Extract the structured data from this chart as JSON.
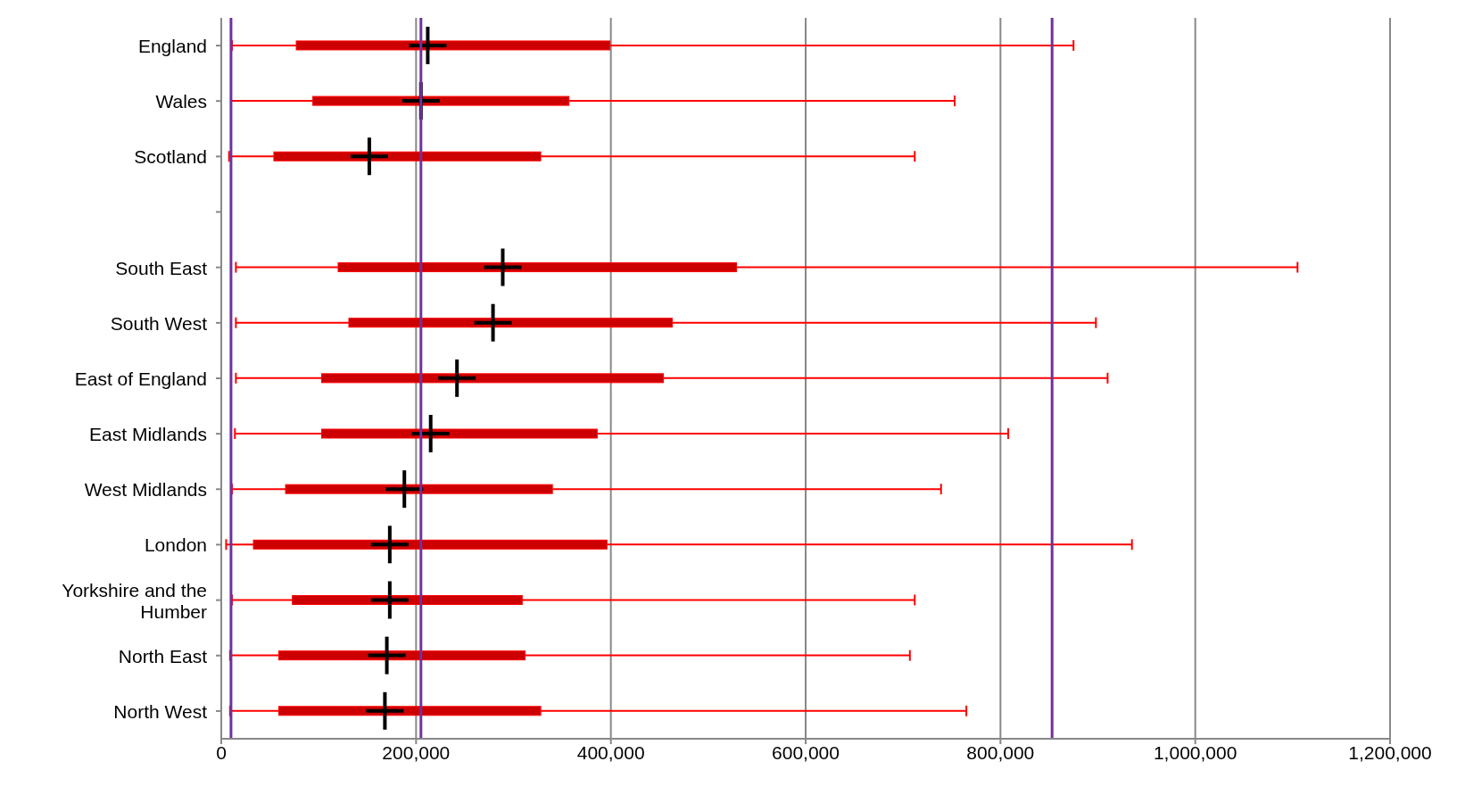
{
  "chart_data": {
    "type": "box",
    "orientation": "horizontal",
    "color": "#ff0000",
    "categories": [
      "England",
      "Wales",
      "Scotland",
      null,
      "South East",
      "South West",
      "East of England",
      "East Midlands",
      "West Midlands",
      "London",
      "Yorkshire and the Humber",
      "North East",
      "North West"
    ],
    "boxes": [
      {
        "low": 11000,
        "q1": 77000,
        "median": 212000,
        "q3": 399000,
        "high": 875000
      },
      {
        "low": 10000,
        "q1": 94000,
        "median": 205000,
        "q3": 357000,
        "high": 753000
      },
      {
        "low": 8000,
        "q1": 54000,
        "median": 152000,
        "q3": 328000,
        "high": 712000
      },
      null,
      {
        "low": 15000,
        "q1": 120000,
        "median": 289000,
        "q3": 529000,
        "high": 1105000
      },
      {
        "low": 15000,
        "q1": 131000,
        "median": 279000,
        "q3": 463000,
        "high": 898000
      },
      {
        "low": 15000,
        "q1": 103000,
        "median": 242000,
        "q3": 454000,
        "high": 910000
      },
      {
        "low": 14000,
        "q1": 103000,
        "median": 215000,
        "q3": 386000,
        "high": 808000
      },
      {
        "low": 11000,
        "q1": 66000,
        "median": 188000,
        "q3": 340000,
        "high": 739000
      },
      {
        "low": 5000,
        "q1": 33000,
        "median": 173000,
        "q3": 396000,
        "high": 935000
      },
      {
        "low": 11000,
        "q1": 73000,
        "median": 173000,
        "q3": 309000,
        "high": 712000
      },
      {
        "low": 9000,
        "q1": 59000,
        "median": 170000,
        "q3": 312000,
        "high": 707000
      },
      {
        "low": 9000,
        "q1": 59000,
        "median": 168000,
        "q3": 328000,
        "high": 765000
      }
    ],
    "xlim": [
      0,
      1200000
    ],
    "xticks": [
      {
        "value": 0,
        "label": "0"
      },
      {
        "value": 200000,
        "label": "200,000"
      },
      {
        "value": 400000,
        "label": "400,000"
      },
      {
        "value": 600000,
        "label": "600,000"
      },
      {
        "value": 800000,
        "label": "800,000"
      },
      {
        "value": 1000000,
        "label": "1,000,000"
      },
      {
        "value": 1200000,
        "label": "1,200,000"
      }
    ],
    "grid": "x",
    "ref_lines": [
      {
        "axis": "x",
        "value": 10000,
        "color": "#7030a0"
      },
      {
        "axis": "x",
        "value": 205000,
        "color": "#7030a0"
      },
      {
        "axis": "x",
        "value": 853000,
        "color": "#7030a0"
      }
    ]
  }
}
